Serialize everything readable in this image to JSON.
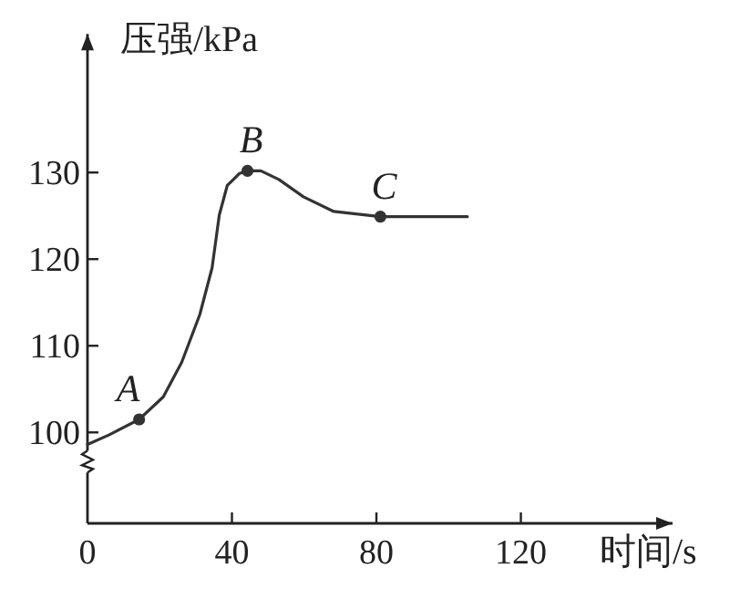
{
  "chart_data": {
    "type": "line",
    "xlabel": "时间/s",
    "ylabel": "压强/kPa",
    "xlim": [
      0,
      162
    ],
    "ylim": [
      89.5,
      146
    ],
    "xticks": [
      0,
      40,
      80,
      120
    ],
    "yticks": [
      100,
      110,
      120,
      130
    ],
    "grid": false,
    "marker": "none",
    "line_style": "solid",
    "series": [
      {
        "color": "#333333",
        "x": [
          0,
          5.9,
          14.3,
          21,
          26.1,
          31.1,
          34.5,
          36.5,
          38.7,
          42.1,
          44.3,
          48,
          53,
          59.8,
          68.2,
          81.1,
          105.2
        ],
        "values": [
          98.6,
          99.7,
          101.5,
          104.1,
          108.1,
          113.6,
          119,
          125.1,
          128.5,
          129.9,
          130.2,
          130.2,
          129.2,
          127.2,
          125.5,
          124.9,
          124.9
        ]
      },
      {
        "type": "scatter",
        "marker": "circle",
        "color": "#333333",
        "x": [
          14.3,
          44.3,
          81.1
        ],
        "values": [
          101.5,
          130.2,
          124.9
        ]
      }
    ],
    "annotations": [
      {
        "text": "A",
        "x": 14.3,
        "y": 101.5
      },
      {
        "text": "B",
        "x": 44.3,
        "y": 130.2
      },
      {
        "text": "C",
        "x": 81.1,
        "y": 124.9
      }
    ]
  }
}
